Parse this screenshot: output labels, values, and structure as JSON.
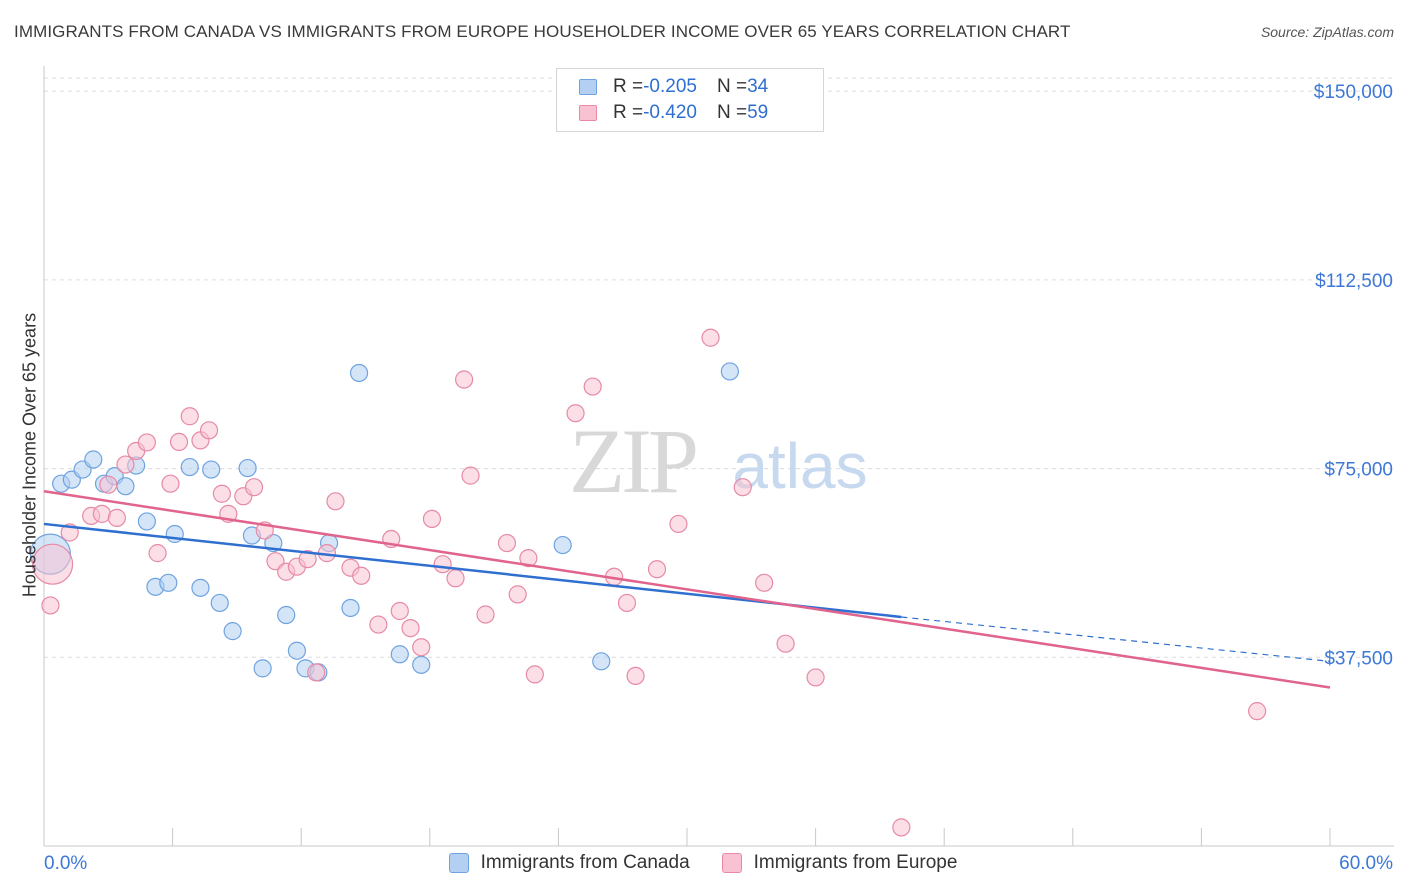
{
  "header": {
    "title": "IMMIGRANTS FROM CANADA VS IMMIGRANTS FROM EUROPE HOUSEHOLDER INCOME OVER 65 YEARS CORRELATION CHART",
    "source": "Source: ZipAtlas.com"
  },
  "watermark": {
    "zip": "ZIP",
    "atlas": "atlas"
  },
  "legend": {
    "rows": [
      {
        "r_label": "R = ",
        "r_value": "-0.205",
        "n_label": "N = ",
        "n_value": "34",
        "color": "#a9c8f0"
      },
      {
        "r_label": "R = ",
        "r_value": "-0.420",
        "n_label": "N = ",
        "n_value": "59",
        "color": "#f6b6c8"
      }
    ]
  },
  "bottom_legend": {
    "items": [
      {
        "label": "Immigrants from Canada",
        "color": "#a9c8f0"
      },
      {
        "label": "Immigrants from Europe",
        "color": "#f6b6c8"
      }
    ]
  },
  "chart_data": {
    "type": "scatter",
    "title": "IMMIGRANTS FROM CANADA VS IMMIGRANTS FROM EUROPE HOUSEHOLDER INCOME OVER 65 YEARS CORRELATION CHART",
    "xlabel": "",
    "ylabel": "Householder Income Over 65 years",
    "xlim": [
      0,
      60
    ],
    "ylim": [
      0,
      155000
    ],
    "x_tick_labels": [
      {
        "value": 0,
        "label": "0.0%"
      },
      {
        "value": 60,
        "label": "60.0%"
      }
    ],
    "y_tick_labels": [
      {
        "value": 37500,
        "label": "$37,500"
      },
      {
        "value": 75000,
        "label": "$75,000"
      },
      {
        "value": 112500,
        "label": "$112,500"
      },
      {
        "value": 150000,
        "label": "$150,000"
      }
    ],
    "grid": "horizontal dashed",
    "legend_position": "top-center",
    "series": [
      {
        "name": "Immigrants from Canada",
        "color": "#6fa3e0",
        "fill": "#b3cff2",
        "r": -0.205,
        "n": 34,
        "trend": {
          "x0": 0,
          "y0": 64000,
          "x1": 40,
          "y1": 45500,
          "dashed_to_x": 60,
          "dashed_to_y": 36700
        },
        "points": [
          [
            0.3,
            58000,
            "large"
          ],
          [
            0.8,
            72000
          ],
          [
            1.3,
            72800
          ],
          [
            1.8,
            74800
          ],
          [
            2.3,
            76800
          ],
          [
            2.8,
            72000
          ],
          [
            3.3,
            73500
          ],
          [
            3.8,
            71500
          ],
          [
            4.3,
            75600
          ],
          [
            4.8,
            64500
          ],
          [
            5.2,
            51500
          ],
          [
            5.8,
            52300
          ],
          [
            6.1,
            62000
          ],
          [
            6.8,
            75300
          ],
          [
            7.3,
            51300
          ],
          [
            7.8,
            74800
          ],
          [
            8.2,
            48300
          ],
          [
            8.8,
            42700
          ],
          [
            9.5,
            75100
          ],
          [
            9.7,
            61700
          ],
          [
            10.2,
            35300
          ],
          [
            10.7,
            60200
          ],
          [
            11.3,
            45900
          ],
          [
            11.8,
            38800
          ],
          [
            12.2,
            35300
          ],
          [
            12.8,
            34500
          ],
          [
            13.3,
            60200
          ],
          [
            14.3,
            47300
          ],
          [
            14.7,
            94000
          ],
          [
            16.6,
            38100
          ],
          [
            17.6,
            36000
          ],
          [
            24.2,
            59800
          ],
          [
            26.0,
            36700
          ],
          [
            32.0,
            94300
          ]
        ]
      },
      {
        "name": "Immigrants from Europe",
        "color": "#e68aa6",
        "fill": "#f8c2d2",
        "r": -0.42,
        "n": 59,
        "trend": {
          "x0": 0,
          "y0": 70500,
          "x1": 60,
          "y1": 31500
        },
        "points": [
          [
            0.4,
            56000,
            "large"
          ],
          [
            0.3,
            47800
          ],
          [
            1.2,
            62300
          ],
          [
            2.2,
            65600
          ],
          [
            2.7,
            66000
          ],
          [
            3.0,
            71800
          ],
          [
            3.4,
            65200
          ],
          [
            3.8,
            75800
          ],
          [
            4.3,
            78500
          ],
          [
            4.8,
            80200
          ],
          [
            5.3,
            58200
          ],
          [
            5.9,
            72000
          ],
          [
            6.3,
            80300
          ],
          [
            6.8,
            85400
          ],
          [
            7.3,
            80600
          ],
          [
            7.7,
            82600
          ],
          [
            8.3,
            70000
          ],
          [
            8.6,
            66000
          ],
          [
            9.3,
            69500
          ],
          [
            9.8,
            71300
          ],
          [
            10.3,
            62700
          ],
          [
            10.8,
            56600
          ],
          [
            11.3,
            54500
          ],
          [
            11.8,
            55500
          ],
          [
            12.3,
            57000
          ],
          [
            12.7,
            34500
          ],
          [
            13.2,
            58200
          ],
          [
            13.6,
            68500
          ],
          [
            14.3,
            55300
          ],
          [
            14.8,
            53700
          ],
          [
            15.6,
            44000
          ],
          [
            16.2,
            61000
          ],
          [
            16.6,
            46700
          ],
          [
            17.1,
            43300
          ],
          [
            17.6,
            39500
          ],
          [
            18.1,
            65000
          ],
          [
            18.6,
            56000
          ],
          [
            19.2,
            53200
          ],
          [
            19.6,
            92700
          ],
          [
            19.9,
            73600
          ],
          [
            20.6,
            46000
          ],
          [
            21.6,
            60200
          ],
          [
            22.1,
            50000
          ],
          [
            22.6,
            57200
          ],
          [
            22.9,
            34100
          ],
          [
            24.8,
            86000
          ],
          [
            25.6,
            91300
          ],
          [
            26.6,
            53500
          ],
          [
            27.2,
            48300
          ],
          [
            27.6,
            33800
          ],
          [
            28.6,
            55000
          ],
          [
            29.6,
            64000
          ],
          [
            31.1,
            101000
          ],
          [
            32.6,
            71300
          ],
          [
            33.6,
            52300
          ],
          [
            34.6,
            40200
          ],
          [
            36.0,
            33500
          ],
          [
            56.6,
            26800
          ],
          [
            40.0,
            3700
          ]
        ]
      }
    ]
  }
}
